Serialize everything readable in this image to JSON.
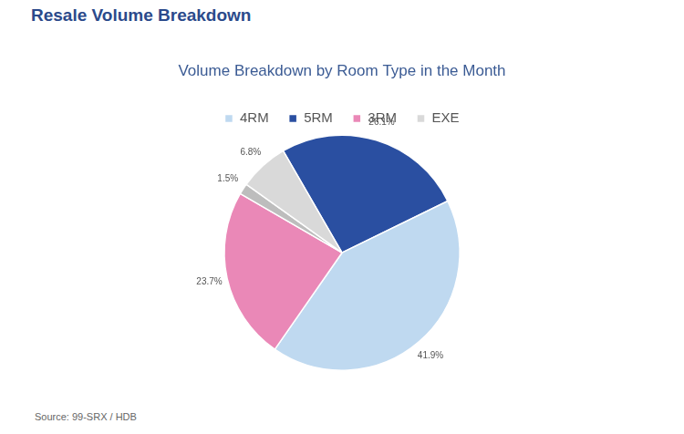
{
  "header": {
    "title": "Resale Volume Breakdown"
  },
  "chart_data": {
    "type": "pie",
    "title": "Volume Breakdown by Room Type in the Month",
    "categories": [
      "5RM",
      "4RM",
      "3RM",
      null,
      "EXE"
    ],
    "values": [
      26.1,
      41.9,
      23.7,
      1.5,
      6.8
    ],
    "value_labels": [
      "26.1%",
      "41.9%",
      "23.7%",
      "1.5%",
      "6.8%"
    ],
    "colors": [
      "#2a4fa1",
      "#bfd9f0",
      "#ea88b7",
      "#bdbdbd",
      "#d9d9d9"
    ],
    "data_labels": true,
    "legend": "top"
  },
  "footer": {
    "source": "Source: 99-SRX / HDB"
  }
}
